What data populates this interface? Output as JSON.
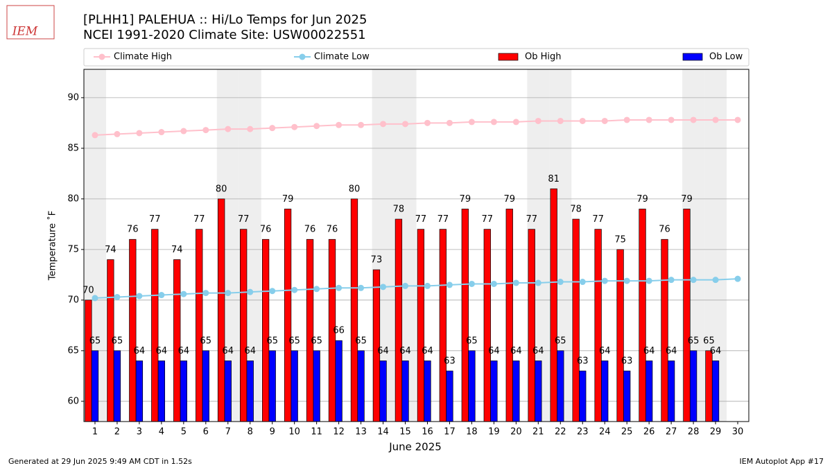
{
  "chart_data": {
    "type": "bar",
    "title": "[PLHH1] PALEHUA :: Hi/Lo Temps for Jun 2025",
    "subtitle": "NCEI 1991-2020 Climate Site: USW00022551",
    "logo_text": "IEM",
    "xlabel": "June 2025",
    "ylabel": "Temperature ˚F",
    "footer_left": "Generated at 29 Jun 2025 9:49 AM CDT in 1.52s",
    "footer_right": "IEM Autoplot App #17",
    "categories": [
      "1",
      "2",
      "3",
      "4",
      "5",
      "6",
      "7",
      "8",
      "9",
      "10",
      "11",
      "12",
      "13",
      "14",
      "15",
      "16",
      "17",
      "18",
      "19",
      "20",
      "21",
      "22",
      "23",
      "24",
      "25",
      "26",
      "27",
      "28",
      "29",
      "30"
    ],
    "shaded_days": [
      1,
      7,
      8,
      14,
      15,
      21,
      22,
      28,
      29
    ],
    "series": [
      {
        "name": "Climate High",
        "type": "line",
        "color": "#ffc0cb",
        "values": [
          86.3,
          86.4,
          86.5,
          86.6,
          86.7,
          86.8,
          86.9,
          86.9,
          87.0,
          87.1,
          87.2,
          87.3,
          87.3,
          87.4,
          87.4,
          87.5,
          87.5,
          87.6,
          87.6,
          87.6,
          87.7,
          87.7,
          87.7,
          87.7,
          87.8,
          87.8,
          87.8,
          87.8,
          87.8,
          87.8
        ]
      },
      {
        "name": "Climate Low",
        "type": "line",
        "color": "#87ceeb",
        "values": [
          70.2,
          70.3,
          70.4,
          70.5,
          70.6,
          70.7,
          70.7,
          70.8,
          70.9,
          71.0,
          71.1,
          71.2,
          71.2,
          71.3,
          71.4,
          71.4,
          71.5,
          71.6,
          71.6,
          71.7,
          71.7,
          71.8,
          71.8,
          71.9,
          71.9,
          71.9,
          72.0,
          72.0,
          72.0,
          72.1
        ]
      },
      {
        "name": "Ob High",
        "type": "bar",
        "color": "#ff0000",
        "values": [
          70,
          74,
          76,
          77,
          74,
          77,
          80,
          77,
          76,
          79,
          76,
          76,
          80,
          73,
          78,
          77,
          77,
          79,
          77,
          79,
          77,
          81,
          78,
          77,
          75,
          79,
          76,
          79,
          65,
          null
        ]
      },
      {
        "name": "Ob Low",
        "type": "bar",
        "color": "#0000ff",
        "values": [
          65,
          65,
          64,
          64,
          64,
          65,
          64,
          64,
          65,
          65,
          65,
          66,
          65,
          64,
          64,
          64,
          63,
          65,
          64,
          64,
          64,
          65,
          63,
          64,
          63,
          64,
          64,
          65,
          64,
          null
        ]
      }
    ],
    "ylim": [
      58,
      92.8
    ],
    "yticks": [
      60,
      65,
      70,
      75,
      80,
      85,
      90
    ],
    "grid": true
  }
}
